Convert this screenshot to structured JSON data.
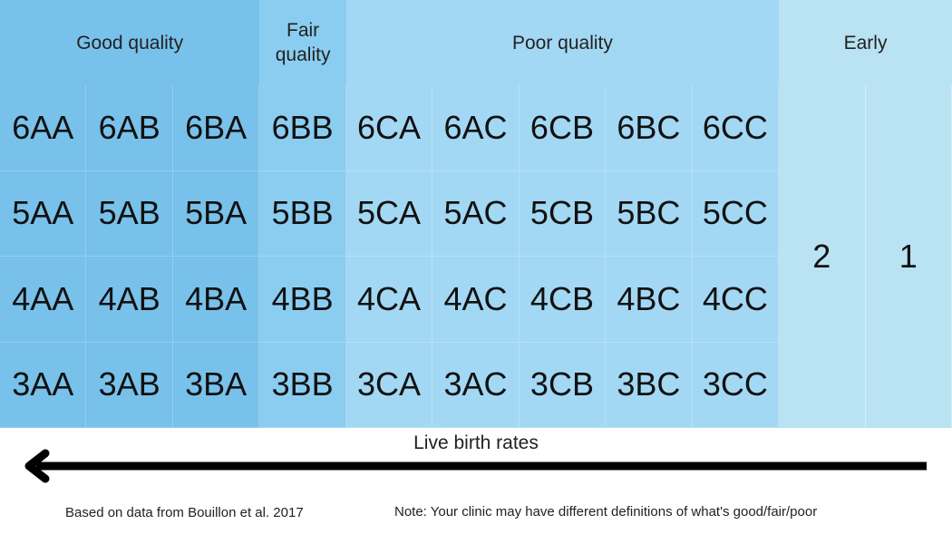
{
  "colors": {
    "good": "#78c1ea",
    "fair": "#8bcdf0",
    "poor": "#a3d8f4",
    "early": "#b9e2f3",
    "arrow": "#000000"
  },
  "groups": [
    {
      "id": "good",
      "label": "Good quality",
      "span": 3
    },
    {
      "id": "fair",
      "label": "Fair quality",
      "span": 1
    },
    {
      "id": "poor",
      "label": "Poor quality",
      "span": 5
    },
    {
      "id": "early",
      "label": "Early",
      "span": 2
    }
  ],
  "grades": [
    [
      "6AA",
      "6AB",
      "6BA",
      "6BB",
      "6CA",
      "6AC",
      "6CB",
      "6BC",
      "6CC"
    ],
    [
      "5AA",
      "5AB",
      "5BA",
      "5BB",
      "5CA",
      "5AC",
      "5CB",
      "5BC",
      "5CC"
    ],
    [
      "4AA",
      "4AB",
      "4BA",
      "4BB",
      "4CA",
      "4AC",
      "4CB",
      "4BC",
      "4CC"
    ],
    [
      "3AA",
      "3AB",
      "3BA",
      "3BB",
      "3CA",
      "3AC",
      "3CB",
      "3BC",
      "3CC"
    ]
  ],
  "early_stages": [
    "2",
    "1"
  ],
  "arrow_label": "Live birth rates",
  "footer": {
    "source": "Based on data from Bouillon et al. 2017",
    "note": "Note: Your clinic may have different definitions of what's good/fair/poor"
  }
}
